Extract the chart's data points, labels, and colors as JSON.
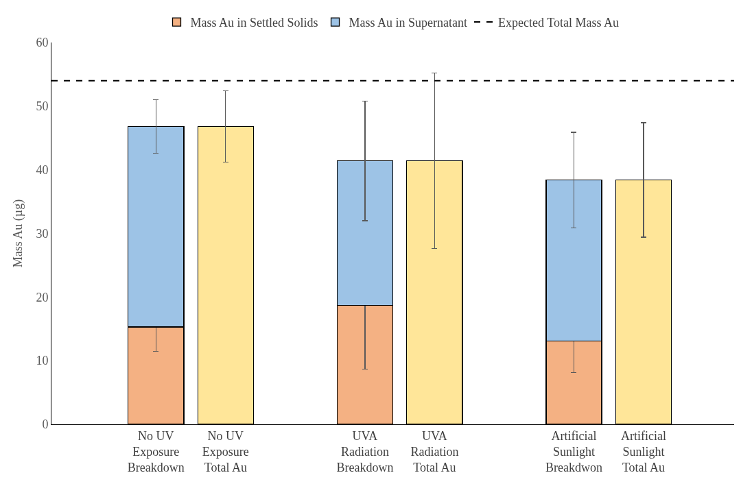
{
  "chart_data": {
    "type": "bar",
    "stacked": true,
    "ylabel": "Mass Au (µg)",
    "categories": [
      null,
      "No UV Exposure Breakdown",
      "No UV Exposure Total Au",
      null,
      "UVA Radiation Breakdown",
      "UVA Radiation Total Au",
      null,
      "Artificial Sunlight Breakdwon",
      "Artificial Sunlight Total Au",
      null
    ],
    "series": [
      {
        "name": "Mass Au in Settled Solids",
        "color": "#f4b183",
        "values": [
          null,
          15.3,
          null,
          null,
          18.7,
          null,
          null,
          13.1,
          null,
          null
        ],
        "errors": [
          null,
          3.8,
          null,
          null,
          10,
          null,
          null,
          5,
          null,
          null
        ]
      },
      {
        "name": "Mass Au in Supernatant",
        "color": "#9dc3e6",
        "values": [
          null,
          31.5,
          null,
          null,
          22.7,
          null,
          null,
          25.3,
          null,
          null
        ],
        "errors": [
          null,
          4.2,
          null,
          null,
          9.4,
          null,
          null,
          7.5,
          null,
          null
        ]
      },
      {
        "color": "#ffe699",
        "values": [
          null,
          null,
          46.8,
          null,
          null,
          41.4,
          null,
          null,
          38.4,
          null
        ],
        "errors": [
          null,
          null,
          5.6,
          null,
          null,
          13.8,
          null,
          null,
          9,
          null
        ]
      }
    ],
    "ref_lines": [
      {
        "axis": "y",
        "value": 54,
        "label": "Expected Total Mass Au",
        "color": "#000000",
        "line_style": "dashed"
      }
    ],
    "ylim": [
      0,
      60
    ],
    "yticks": [
      0,
      10,
      20,
      30,
      40,
      50,
      60
    ],
    "legend": "top"
  }
}
